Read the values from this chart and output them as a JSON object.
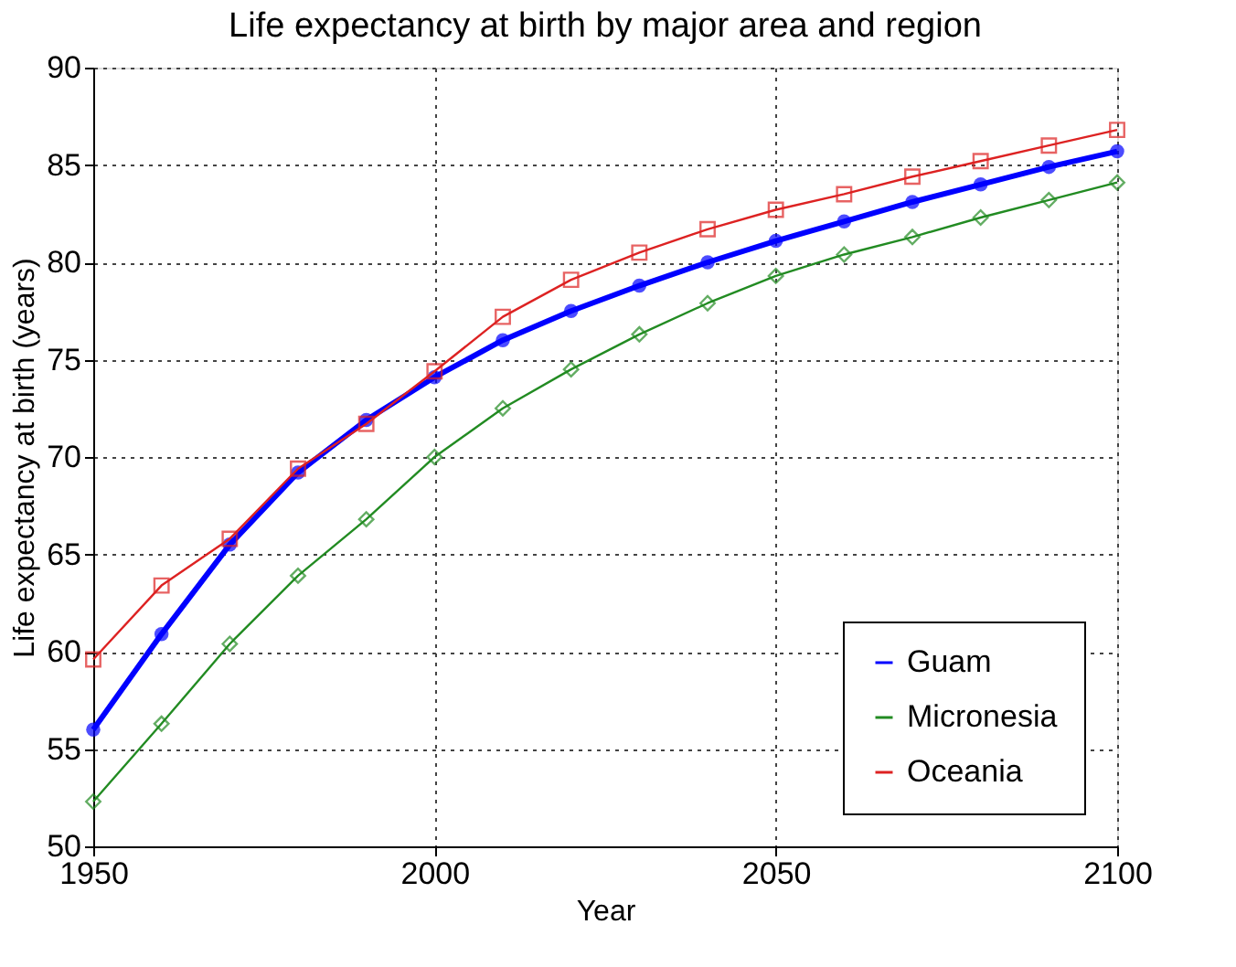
{
  "chart_data": {
    "type": "line",
    "title": "Life expectancy at birth by major area and region",
    "xlabel": "Year",
    "ylabel": "Life expectancy at birth (years)",
    "x": [
      1950,
      1960,
      1970,
      1980,
      1990,
      2000,
      2010,
      2020,
      2030,
      2040,
      2050,
      2060,
      2070,
      2080,
      2090,
      2100
    ],
    "series": [
      {
        "name": "Guam",
        "color": "#0000ff",
        "marker": "circle",
        "values": [
          56.0,
          60.9,
          65.5,
          69.2,
          71.9,
          74.1,
          76.0,
          77.5,
          78.8,
          80.0,
          81.1,
          82.1,
          83.1,
          84.0,
          84.9,
          85.7
        ]
      },
      {
        "name": "Micronesia",
        "color": "#228b22",
        "marker": "diamond",
        "values": [
          52.3,
          56.3,
          60.4,
          63.9,
          66.8,
          70.0,
          72.5,
          74.5,
          76.3,
          77.9,
          79.3,
          80.4,
          81.3,
          82.3,
          83.2,
          84.1
        ]
      },
      {
        "name": "Oceania",
        "color": "#dd2222",
        "marker": "square",
        "values": [
          59.6,
          63.4,
          65.8,
          69.4,
          71.7,
          74.4,
          77.2,
          79.1,
          80.5,
          81.7,
          82.7,
          83.5,
          84.4,
          85.2,
          86.0,
          86.8
        ]
      }
    ],
    "xlim": [
      1950,
      2100
    ],
    "xticks": [
      1950,
      2000,
      2050,
      2100
    ],
    "ylim": [
      50,
      90
    ],
    "yticks": [
      50,
      55,
      60,
      65,
      70,
      75,
      80,
      85,
      90
    ],
    "grid": true,
    "legend": "bottom right",
    "line_style": "solid"
  }
}
